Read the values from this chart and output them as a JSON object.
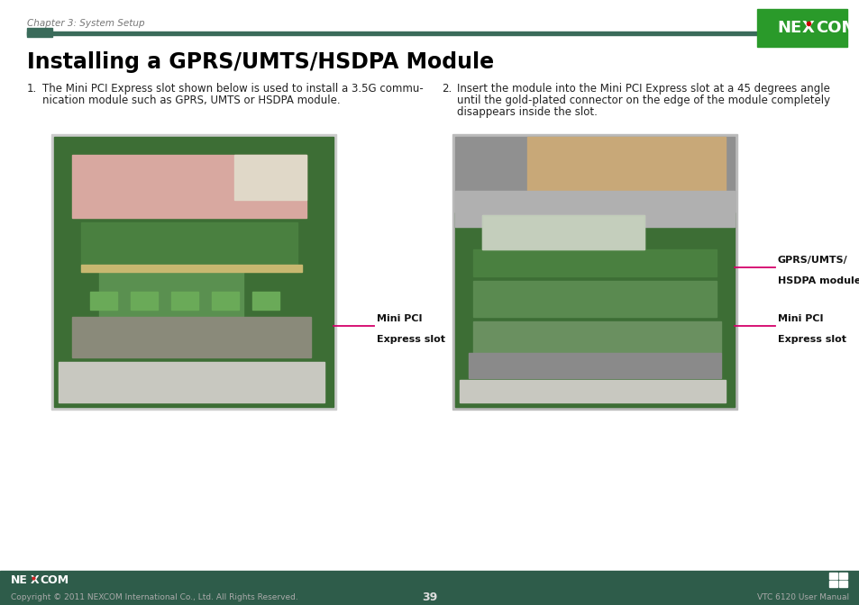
{
  "page_title": "Installing a GPRS/UMTS/HSDPA Module",
  "chapter_header": "Chapter 3: System Setup",
  "bg_color": "#ffffff",
  "header_bar_color": "#3a6b5a",
  "para1_number": "1.",
  "para1_text_line1": "The Mini PCI Express slot shown below is used to install a 3.5G commu-",
  "para1_text_line2": "nication module such as GPRS, UMTS or HSDPA module.",
  "para2_number": "2.",
  "para2_text_line1": "Insert the module into the Mini PCI Express slot at a 45 degrees angle",
  "para2_text_line2": "until the gold-plated connector on the edge of the module completely",
  "para2_text_line3": "disappears inside the slot.",
  "label1_line1": "Mini PCI",
  "label1_line2": "Express slot",
  "label2a_line1": "GPRS/UMTS/",
  "label2a_line2": "HSDPA module",
  "label2b_line1": "Mini PCI",
  "label2b_line2": "Express slot",
  "footer_left": "Copyright © 2011 NEXCOM International Co., Ltd. All Rights Reserved.",
  "footer_center": "39",
  "footer_right": "VTC 6120 User Manual",
  "footer_bar_color": "#2e5c4a",
  "line_color": "#d4006a",
  "text_color": "#222222",
  "nexcom_green": "#2a9a2a",
  "nexcom_red_dot": "#cc0000"
}
